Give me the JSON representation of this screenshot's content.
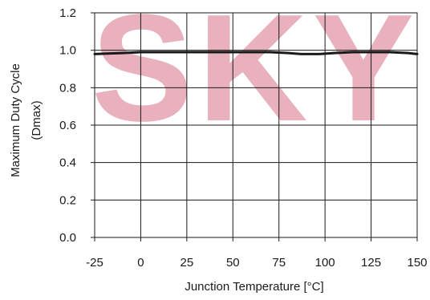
{
  "watermark": {
    "text": "SKY",
    "color": "#e4a3b1"
  },
  "chart_data": {
    "type": "line",
    "xlabel": "Junction Temperature [°C]",
    "ylabel_lines": [
      "Maximum Duty Cycle",
      "(Dmax)"
    ],
    "xlim": [
      -25,
      150
    ],
    "ylim": [
      0.0,
      1.2
    ],
    "x_ticks": [
      -25,
      0,
      25,
      50,
      75,
      100,
      125,
      150
    ],
    "x_tick_labels": [
      "-25",
      "0",
      "25",
      "50",
      "75",
      "100",
      "125",
      "150"
    ],
    "y_ticks": [
      0.0,
      0.2,
      0.4,
      0.6,
      0.8,
      1.0,
      1.2
    ],
    "y_tick_labels": [
      "0.0",
      "0.2",
      "0.4",
      "0.6",
      "0.8",
      "1.0",
      "1.2"
    ],
    "grid": true,
    "series": [
      {
        "color": "#1a1a1a",
        "x": [
          -25,
          -10,
          0,
          25,
          50,
          70,
          80,
          87,
          97,
          105,
          115,
          125,
          135,
          145,
          150
        ],
        "y": [
          0.98,
          0.985,
          0.99,
          0.99,
          0.99,
          0.99,
          0.985,
          0.98,
          0.98,
          0.985,
          0.99,
          0.99,
          0.99,
          0.985,
          0.98
        ]
      }
    ]
  }
}
